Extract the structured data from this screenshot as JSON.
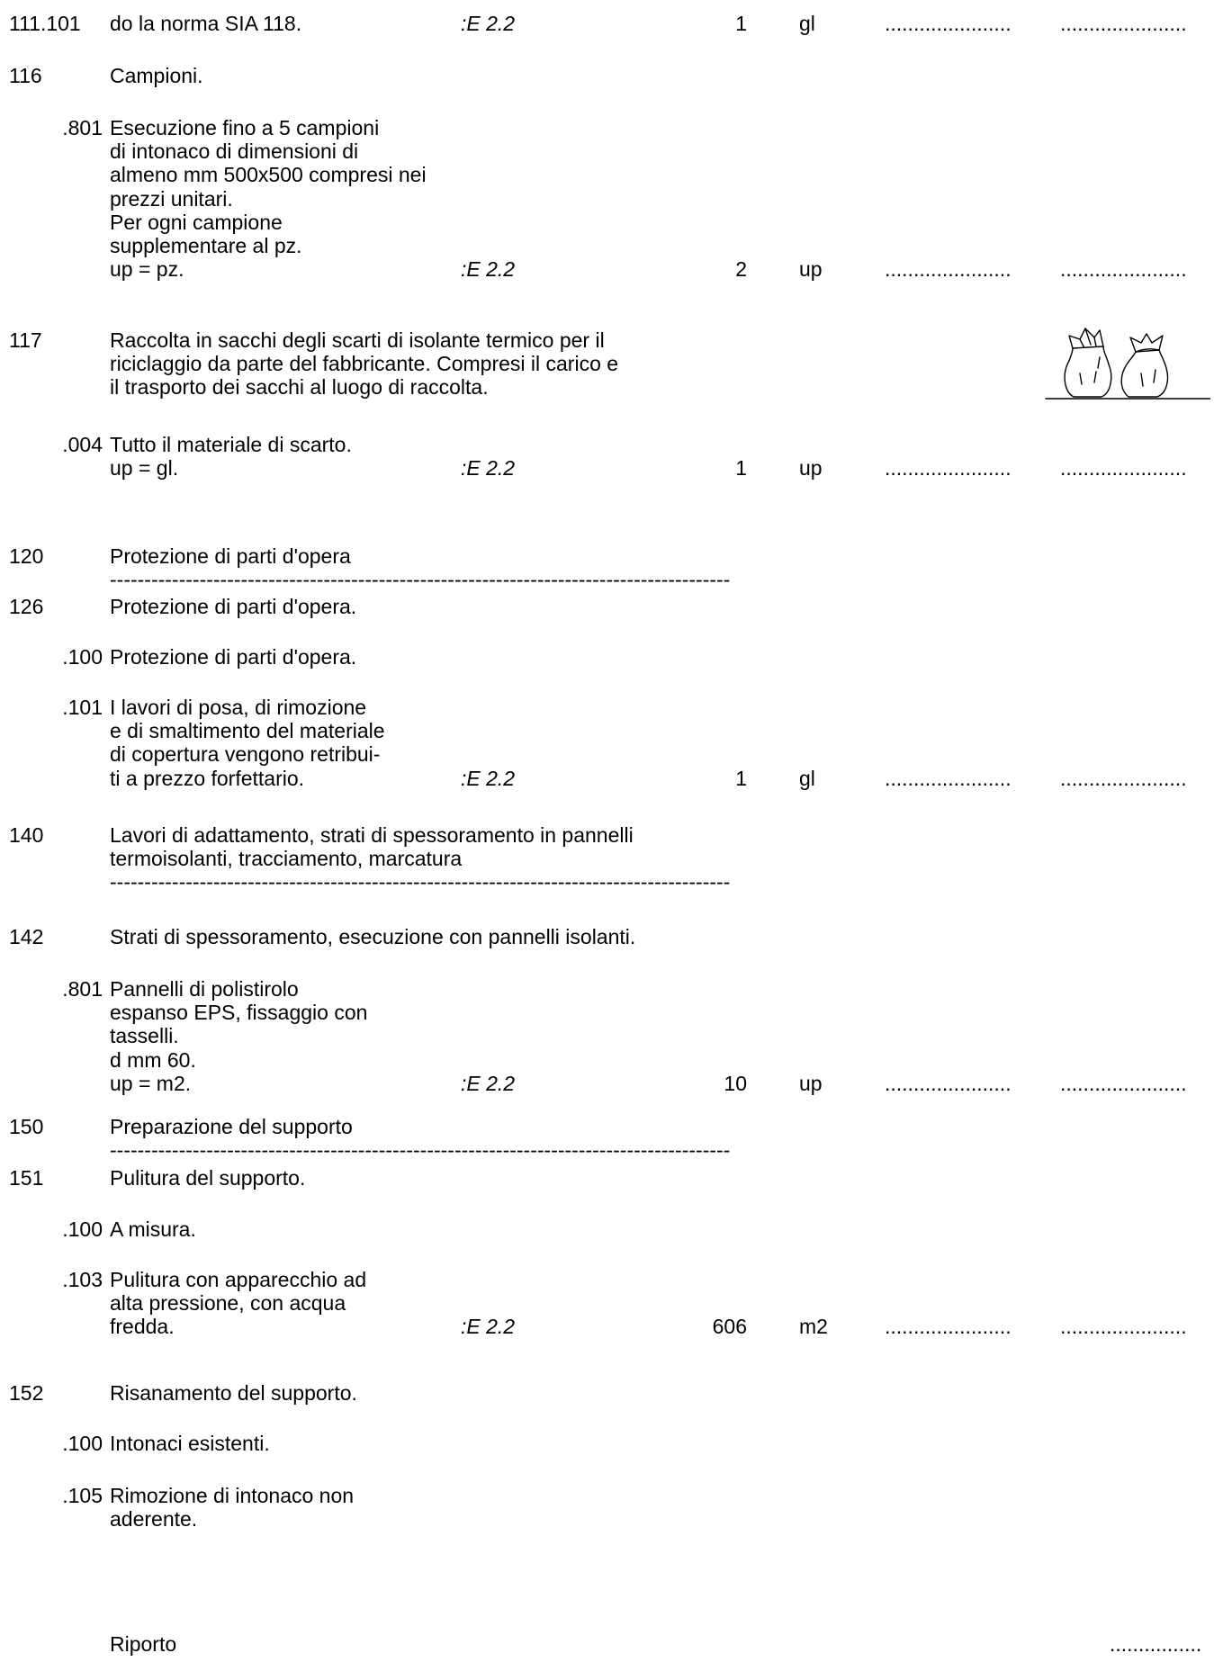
{
  "rows": [
    {
      "code": "111.101",
      "lines": [
        "do la norma SIA 118."
      ],
      "ref": ":E 2.2",
      "qty": "1",
      "unit": "gl",
      "price": "......................",
      "total": "......................"
    },
    {
      "code": "116",
      "lines": [
        "Campioni."
      ]
    },
    {
      "code": ".801",
      "lines": [
        "Esecuzione fino a 5 campioni",
        "di intonaco di dimensioni di",
        "almeno mm 500x500 compresi nei",
        "prezzi unitari.",
        "Per ogni campione",
        "supplementare al pz.",
        "up = pz."
      ],
      "ref": ":E 2.2",
      "qty": "2",
      "unit": "up",
      "price": "......................",
      "total": "......................"
    },
    {
      "code": "117",
      "lines": [
        "Raccolta in sacchi degli scarti di isolante termico per il",
        "riciclaggio da parte del fabbricante. Compresi il carico e",
        "il trasporto dei sacchi al luogo di raccolta."
      ]
    },
    {
      "code": ".004",
      "lines": [
        "Tutto il materiale di scarto.",
        "up = gl."
      ],
      "ref": ":E 2.2",
      "qty": "1",
      "unit": "up",
      "price": "......................",
      "total": "......................"
    },
    {
      "code": "120",
      "lines": [
        "Protezione di parti d'opera"
      ],
      "rule": "------------------------------------------------------------------------------------------"
    },
    {
      "code": "126",
      "lines": [
        "Protezione di parti d'opera."
      ]
    },
    {
      "code": ".100",
      "lines": [
        "Protezione di parti d'opera."
      ]
    },
    {
      "code": ".101",
      "lines": [
        "I lavori di posa, di rimozione",
        "e di smaltimento del materiale",
        "di copertura vengono retribui-",
        "ti a prezzo forfettario."
      ],
      "ref": ":E 2.2",
      "qty": "1",
      "unit": "gl",
      "price": "......................",
      "total": "......................"
    },
    {
      "code": "140",
      "lines": [
        "Lavori di adattamento, strati di spessoramento in pannelli",
        "termoisolanti, tracciamento, marcatura"
      ],
      "rule": "------------------------------------------------------------------------------------------"
    },
    {
      "code": "142",
      "lines": [
        "Strati di spessoramento, esecuzione con pannelli isolanti."
      ]
    },
    {
      "code": ".801",
      "lines": [
        "Pannelli di polistirolo",
        "espanso EPS, fissaggio con",
        "tasselli.",
        "d mm 60.",
        "up = m2."
      ],
      "ref": ":E 2.2",
      "qty": "10",
      "unit": "up",
      "price": "......................",
      "total": "......................"
    },
    {
      "code": "150",
      "lines": [
        "Preparazione del supporto"
      ],
      "rule": "------------------------------------------------------------------------------------------"
    },
    {
      "code": "151",
      "lines": [
        "Pulitura del supporto."
      ]
    },
    {
      "code": ".100",
      "lines": [
        "A misura."
      ]
    },
    {
      "code": ".103",
      "lines": [
        "Pulitura con apparecchio ad",
        "alta pressione, con acqua",
        "fredda."
      ],
      "ref": ":E 2.2",
      "qty": "606",
      "unit": "m2",
      "price": "......................",
      "total": "......................"
    },
    {
      "code": "152",
      "lines": [
        "Risanamento del supporto."
      ]
    },
    {
      "code": ".100",
      "lines": [
        "Intonaci esistenti."
      ]
    },
    {
      "code": ".105",
      "lines": [
        "Rimozione di intonaco non",
        "aderente."
      ]
    }
  ],
  "footer": {
    "label": "Riporto",
    "value": "................"
  }
}
